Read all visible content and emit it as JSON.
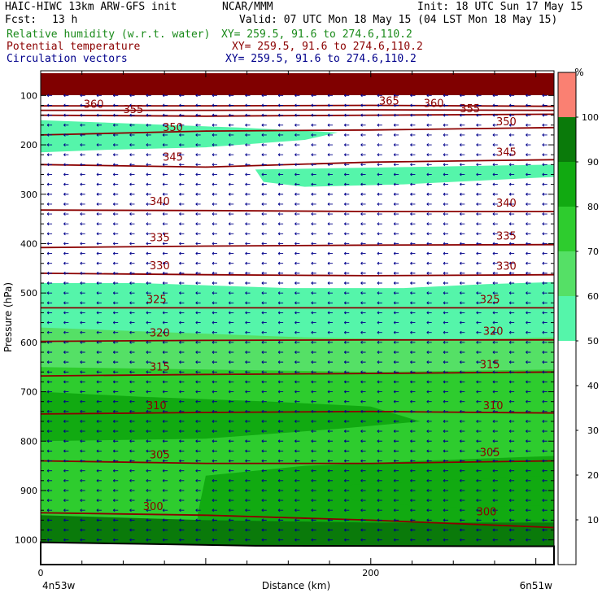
{
  "header": {
    "model_line": "HAIC-HIWC 13km ARW-GFS init",
    "center": "NCAR/MMM",
    "init": "Init: 18 UTC Sun 17 May 15",
    "fcst_label": "Fcst:",
    "fcst_value": "13 h",
    "valid": "Valid: 07 UTC Mon 18 May 15 (04 LST Mon 18 May 15)",
    "field1": "Relative humidity (w.r.t. water)",
    "field1_xy": "XY= 259.5, 91.6 to 274.6,110.2",
    "field2": "Potential temperature",
    "field2_xy": "XY= 259.5, 91.6 to 274.6,110.2",
    "field3": "Circulation vectors",
    "field3_xy": "XY= 259.5, 91.6 to 274.6,110.2"
  },
  "chart_data": {
    "type": "cross-section",
    "xlabel": "Distance (km)",
    "ylabel": "Pressure (hPa)",
    "x_ticks": [
      0,
      200
    ],
    "x_range": [
      0,
      311
    ],
    "x_end_labels": [
      "4n53w",
      "6n51w"
    ],
    "y_ticks": [
      100,
      200,
      300,
      400,
      500,
      600,
      700,
      800,
      900,
      1000
    ],
    "y_range_hPa": [
      50,
      1050
    ],
    "y_scale": "linear",
    "colorbar": {
      "unit": "%",
      "ticks": [
        10,
        20,
        30,
        40,
        50,
        60,
        70,
        80,
        90,
        100
      ],
      "bins": [
        {
          "lo": 0,
          "hi": 50,
          "color": "#ffffff"
        },
        {
          "lo": 50,
          "hi": 60,
          "color": "#55f5aa"
        },
        {
          "lo": 60,
          "hi": 70,
          "color": "#55e066"
        },
        {
          "lo": 70,
          "hi": 80,
          "color": "#2ecc2e"
        },
        {
          "lo": 80,
          "hi": 90,
          "color": "#11aa11"
        },
        {
          "lo": 90,
          "hi": 100,
          "color": "#0a7a0a"
        },
        {
          "lo": 100,
          "hi": 110,
          "color": "#fa8072"
        }
      ]
    },
    "rh_regions": [
      {
        "level": 100,
        "color": "#800000",
        "points": [
          [
            0,
            55
          ],
          [
            311,
            55
          ],
          [
            311,
            100
          ],
          [
            0,
            100
          ]
        ]
      },
      {
        "level": 50,
        "color": "#55f5aa",
        "points": [
          [
            0,
            150
          ],
          [
            40,
            155
          ],
          [
            120,
            165
          ],
          [
            180,
            175
          ],
          [
            160,
            190
          ],
          [
            100,
            205
          ],
          [
            40,
            210
          ],
          [
            0,
            215
          ]
        ]
      },
      {
        "level": 50,
        "color": "#55f5aa",
        "points": [
          [
            130,
            250
          ],
          [
            220,
            245
          ],
          [
            311,
            240
          ],
          [
            311,
            265
          ],
          [
            220,
            280
          ],
          [
            160,
            285
          ],
          [
            135,
            275
          ]
        ]
      },
      {
        "level": 50,
        "color": "#55f5aa",
        "points": [
          [
            0,
            480
          ],
          [
            60,
            480
          ],
          [
            150,
            490
          ],
          [
            220,
            490
          ],
          [
            270,
            482
          ],
          [
            311,
            478
          ],
          [
            311,
            1050
          ],
          [
            0,
            1050
          ]
        ]
      },
      {
        "level": 60,
        "color": "#55e066",
        "points": [
          [
            0,
            570
          ],
          [
            80,
            580
          ],
          [
            160,
            590
          ],
          [
            240,
            595
          ],
          [
            311,
            590
          ],
          [
            311,
            1050
          ],
          [
            0,
            1050
          ]
        ]
      },
      {
        "level": 70,
        "color": "#2ecc2e",
        "points": [
          [
            0,
            650
          ],
          [
            100,
            655
          ],
          [
            200,
            660
          ],
          [
            311,
            655
          ],
          [
            311,
            1050
          ],
          [
            0,
            1050
          ]
        ]
      },
      {
        "level": 80,
        "color": "#11aa11",
        "points": [
          [
            0,
            700
          ],
          [
            60,
            710
          ],
          [
            140,
            720
          ],
          [
            200,
            730
          ],
          [
            230,
            760
          ],
          [
            180,
            775
          ],
          [
            100,
            795
          ],
          [
            0,
            800
          ]
        ]
      },
      {
        "level": 80,
        "color": "#11aa11",
        "points": [
          [
            100,
            870
          ],
          [
            160,
            850
          ],
          [
            230,
            840
          ],
          [
            311,
            830
          ],
          [
            311,
            1050
          ],
          [
            100,
            1050
          ],
          [
            95,
            950
          ]
        ]
      },
      {
        "level": 90,
        "color": "#0a7a0a",
        "points": [
          [
            0,
            950
          ],
          [
            100,
            960
          ],
          [
            200,
            965
          ],
          [
            311,
            965
          ],
          [
            311,
            1050
          ],
          [
            0,
            1050
          ]
        ]
      },
      {
        "level": 80,
        "color": "#11aa11",
        "points": [
          [
            180,
            890
          ],
          [
            240,
            880
          ],
          [
            311,
            870
          ],
          [
            311,
            930
          ],
          [
            240,
            935
          ],
          [
            190,
            920
          ]
        ]
      }
    ],
    "theta_contours": [
      {
        "value": 300,
        "points": [
          [
            0,
            945
          ],
          [
            100,
            950
          ],
          [
            200,
            960
          ],
          [
            311,
            975
          ]
        ]
      },
      {
        "value": 305,
        "points": [
          [
            0,
            840
          ],
          [
            100,
            845
          ],
          [
            200,
            845
          ],
          [
            311,
            840
          ]
        ]
      },
      {
        "value": 310,
        "points": [
          [
            0,
            745
          ],
          [
            100,
            742
          ],
          [
            200,
            740
          ],
          [
            311,
            743
          ]
        ]
      },
      {
        "value": 315,
        "points": [
          [
            0,
            668
          ],
          [
            100,
            665
          ],
          [
            200,
            663
          ],
          [
            311,
            660
          ]
        ]
      },
      {
        "value": 320,
        "points": [
          [
            0,
            598
          ],
          [
            100,
            596
          ],
          [
            200,
            595
          ],
          [
            311,
            595
          ]
        ]
      },
      {
        "value": 325,
        "points": [
          [
            0,
            530
          ],
          [
            100,
            530
          ],
          [
            200,
            530
          ],
          [
            311,
            530
          ]
        ]
      },
      {
        "value": 330,
        "points": [
          [
            0,
            460
          ],
          [
            100,
            463
          ],
          [
            200,
            465
          ],
          [
            311,
            463
          ]
        ]
      },
      {
        "value": 335,
        "points": [
          [
            0,
            408
          ],
          [
            100,
            405
          ],
          [
            200,
            403
          ],
          [
            311,
            402
          ]
        ]
      },
      {
        "value": 340,
        "points": [
          [
            0,
            332
          ],
          [
            100,
            333
          ],
          [
            200,
            335
          ],
          [
            311,
            335
          ]
        ]
      },
      {
        "value": 345,
        "points": [
          [
            0,
            240
          ],
          [
            100,
            245
          ],
          [
            200,
            235
          ],
          [
            311,
            230
          ]
        ]
      },
      {
        "value": 350,
        "points": [
          [
            0,
            180
          ],
          [
            100,
            172
          ],
          [
            200,
            170
          ],
          [
            311,
            165
          ]
        ]
      },
      {
        "value": 355,
        "points": [
          [
            0,
            140
          ],
          [
            100,
            142
          ],
          [
            200,
            140
          ],
          [
            311,
            138
          ]
        ]
      },
      {
        "value": 360,
        "points": [
          [
            0,
            130
          ],
          [
            100,
            130
          ],
          [
            200,
            129
          ],
          [
            311,
            130
          ]
        ]
      },
      {
        "value": 365,
        "points": [
          [
            0,
            121
          ],
          [
            100,
            121
          ],
          [
            200,
            120
          ],
          [
            311,
            122
          ]
        ]
      }
    ],
    "theta_labels": [
      {
        "text": "300",
        "x": 62,
        "p": 940
      },
      {
        "text": "300",
        "x": 264,
        "p": 950
      },
      {
        "text": "305",
        "x": 66,
        "p": 835
      },
      {
        "text": "305",
        "x": 266,
        "p": 830
      },
      {
        "text": "310",
        "x": 64,
        "p": 735
      },
      {
        "text": "310",
        "x": 268,
        "p": 735
      },
      {
        "text": "315",
        "x": 66,
        "p": 657
      },
      {
        "text": "315",
        "x": 266,
        "p": 652
      },
      {
        "text": "320",
        "x": 66,
        "p": 588
      },
      {
        "text": "320",
        "x": 268,
        "p": 585
      },
      {
        "text": "325",
        "x": 64,
        "p": 520
      },
      {
        "text": "325",
        "x": 266,
        "p": 520
      },
      {
        "text": "330",
        "x": 66,
        "p": 452
      },
      {
        "text": "330",
        "x": 276,
        "p": 453
      },
      {
        "text": "335",
        "x": 66,
        "p": 395
      },
      {
        "text": "335",
        "x": 276,
        "p": 392
      },
      {
        "text": "340",
        "x": 66,
        "p": 322
      },
      {
        "text": "340",
        "x": 276,
        "p": 325
      },
      {
        "text": "345",
        "x": 74,
        "p": 232
      },
      {
        "text": "345",
        "x": 276,
        "p": 222
      },
      {
        "text": "350",
        "x": 74,
        "p": 172
      },
      {
        "text": "350",
        "x": 276,
        "p": 160
      },
      {
        "text": "355",
        "x": 50,
        "p": 136
      },
      {
        "text": "355",
        "x": 254,
        "p": 134
      },
      {
        "text": "360",
        "x": 26,
        "p": 125
      },
      {
        "text": "360",
        "x": 232,
        "p": 123
      },
      {
        "text": "365",
        "x": 205,
        "p": 118
      }
    ],
    "wind_arrows": {
      "color": "#00008b",
      "direction": "westward",
      "x_spacing_km": 10,
      "p_spacing_hPa": 20
    }
  }
}
